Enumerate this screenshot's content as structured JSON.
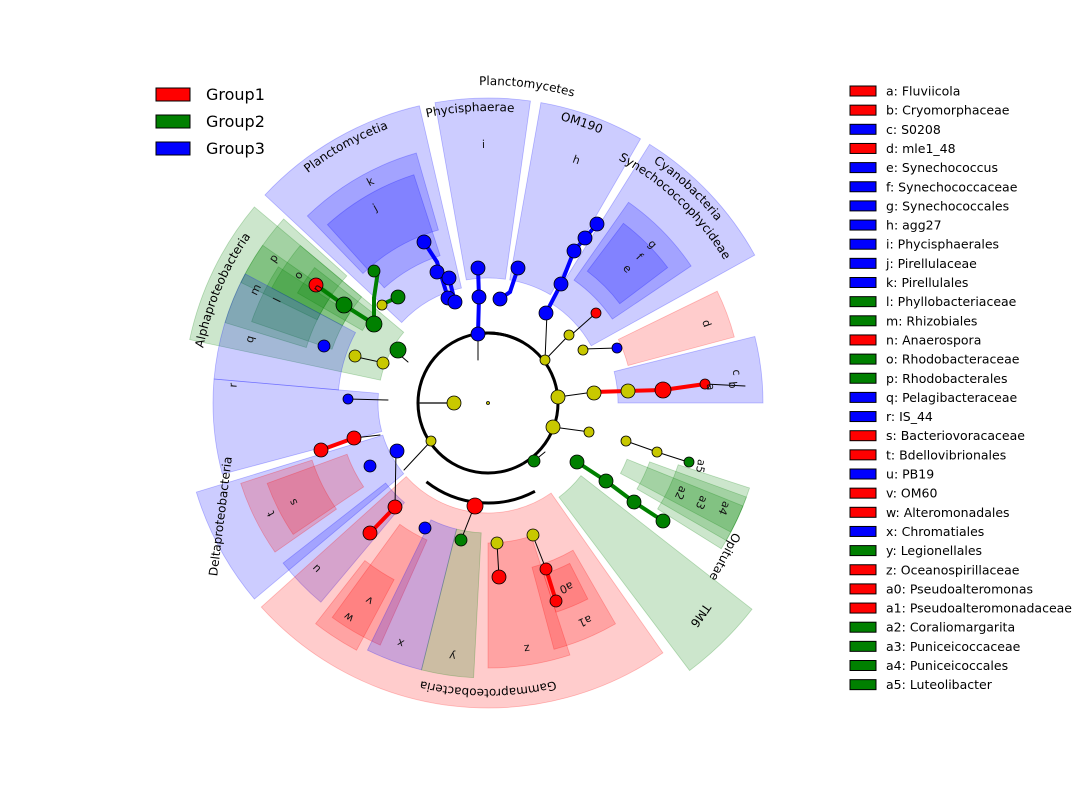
{
  "chart_data": {
    "type": "cladogram",
    "title": "",
    "groups": [
      {
        "name": "Group1",
        "color": "#ff0000"
      },
      {
        "name": "Group2",
        "color": "#008000"
      },
      {
        "name": "Group3",
        "color": "#0000ff"
      }
    ],
    "phyla_labels": [
      {
        "text": "Planctomycetes",
        "group": 3
      },
      {
        "text": "Cyanobacteria",
        "group": 3
      },
      {
        "text": "Alphaproteobacteria",
        "group": 2
      },
      {
        "text": "Deltaproteobacteria",
        "group": 3
      },
      {
        "text": "Gammaproteobacteria",
        "group": 1
      },
      {
        "text": "Opitutae",
        "group": 2
      },
      {
        "text": "TM6",
        "group": 2
      }
    ],
    "class_labels": [
      {
        "text": "Planctomycetia",
        "group": 3
      },
      {
        "text": "Phycisphaerae",
        "group": 3
      },
      {
        "text": "OM190",
        "group": 3
      },
      {
        "text": "Synechococcophycideae",
        "group": 3
      }
    ],
    "taxa": [
      {
        "id": "a",
        "name": "Fluviicola",
        "group": 1
      },
      {
        "id": "b",
        "name": "Cryomorphaceae",
        "group": 1
      },
      {
        "id": "c",
        "name": "S0208",
        "group": 3
      },
      {
        "id": "d",
        "name": "mle1_48",
        "group": 1
      },
      {
        "id": "e",
        "name": "Synechococcus",
        "group": 3
      },
      {
        "id": "f",
        "name": "Synechococcaceae",
        "group": 3
      },
      {
        "id": "g",
        "name": "Synechococcales",
        "group": 3
      },
      {
        "id": "h",
        "name": "agg27",
        "group": 3
      },
      {
        "id": "i",
        "name": "Phycisphaerales",
        "group": 3
      },
      {
        "id": "j",
        "name": "Pirellulaceae",
        "group": 3
      },
      {
        "id": "k",
        "name": "Pirellulales",
        "group": 3
      },
      {
        "id": "l",
        "name": "Phyllobacteriaceae",
        "group": 2
      },
      {
        "id": "m",
        "name": "Rhizobiales",
        "group": 2
      },
      {
        "id": "n",
        "name": "Anaerospora",
        "group": 1
      },
      {
        "id": "o",
        "name": "Rhodobacteraceae",
        "group": 2
      },
      {
        "id": "p",
        "name": "Rhodobacterales",
        "group": 2
      },
      {
        "id": "q",
        "name": "Pelagibacteraceae",
        "group": 3
      },
      {
        "id": "r",
        "name": "IS_44",
        "group": 3
      },
      {
        "id": "s",
        "name": "Bacteriovoracaceae",
        "group": 1
      },
      {
        "id": "t",
        "name": "Bdellovibrionales",
        "group": 1
      },
      {
        "id": "u",
        "name": "PB19",
        "group": 3
      },
      {
        "id": "v",
        "name": "OM60",
        "group": 1
      },
      {
        "id": "w",
        "name": "Alteromonadales",
        "group": 1
      },
      {
        "id": "x",
        "name": "Chromatiales",
        "group": 3
      },
      {
        "id": "y",
        "name": "Legionellales",
        "group": 2
      },
      {
        "id": "z",
        "name": "Oceanospirillaceae",
        "group": 1
      },
      {
        "id": "a0",
        "name": "Pseudoalteromonas",
        "group": 1
      },
      {
        "id": "a1",
        "name": "Pseudoalteromonadaceae",
        "group": 1
      },
      {
        "id": "a2",
        "name": "Coraliomargarita",
        "group": 2
      },
      {
        "id": "a3",
        "name": "Puniceicoccaceae",
        "group": 2
      },
      {
        "id": "a4",
        "name": "Puniceicoccales",
        "group": 2
      },
      {
        "id": "a5",
        "name": "Luteolibacter",
        "group": 2
      }
    ]
  }
}
